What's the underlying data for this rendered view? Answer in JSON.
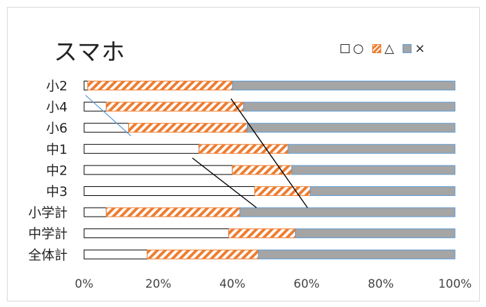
{
  "chart_data": {
    "type": "bar",
    "orientation": "horizontal",
    "stacked": "percent",
    "title": "スマホ",
    "categories": [
      "小2",
      "小4",
      "小6",
      "中1",
      "中2",
      "中3",
      "小学計",
      "中学計",
      "全体計"
    ],
    "series": [
      {
        "name": "○",
        "values": [
          1,
          6,
          12,
          31,
          40,
          46,
          6,
          39,
          17
        ],
        "color": "#ffffff",
        "border": "#000000"
      },
      {
        "name": "△",
        "values": [
          39,
          37,
          32,
          24,
          16,
          15,
          36,
          18,
          30
        ],
        "color": "#ED7D31",
        "pattern": "diagonal-stripe"
      },
      {
        "name": "×",
        "values": [
          60,
          57,
          56,
          45,
          44,
          39,
          58,
          43,
          53
        ],
        "color": "#A5A5A5",
        "border": "#5B9BD5"
      }
    ],
    "xlim": [
      0,
      100
    ],
    "x_ticks": [
      "0%",
      "20%",
      "40%",
      "60%",
      "80%",
      "100%"
    ],
    "legend_position": "top-right",
    "grid": false
  },
  "legend": {
    "circle": "○",
    "triangle": "△",
    "cross": "×"
  }
}
